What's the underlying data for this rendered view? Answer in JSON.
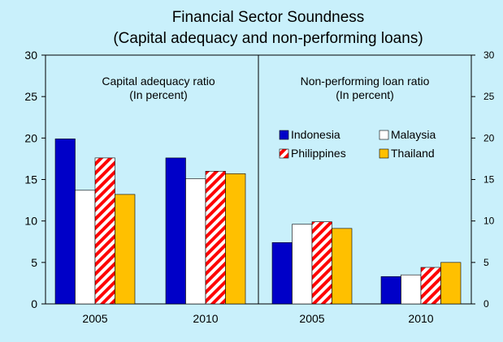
{
  "chart_data": {
    "type": "bar",
    "title": "Financial Sector Soundness",
    "subtitle": "(Capital adequacy and non-performing loans)",
    "ylim": [
      0,
      30
    ],
    "yticks": [
      0,
      5,
      10,
      15,
      20,
      25,
      30
    ],
    "grid": false,
    "legend_position": "inside right panel, upper",
    "panels": [
      {
        "title": "Capital adequacy ratio",
        "subtitle": "(In percent)",
        "categories": [
          "2005",
          "2010"
        ],
        "series": [
          {
            "name": "Indonesia",
            "values": [
              19.9,
              17.6
            ]
          },
          {
            "name": "Malaysia",
            "values": [
              13.7,
              15.1
            ]
          },
          {
            "name": "Philippines",
            "values": [
              17.6,
              16.0
            ]
          },
          {
            "name": "Thailand",
            "values": [
              13.2,
              15.7
            ]
          }
        ]
      },
      {
        "title": "Non-performing loan ratio",
        "subtitle": "(In percent)",
        "categories": [
          "2005",
          "2010"
        ],
        "series": [
          {
            "name": "Indonesia",
            "values": [
              7.4,
              3.3
            ]
          },
          {
            "name": "Malaysia",
            "values": [
              9.6,
              3.5
            ]
          },
          {
            "name": "Philippines",
            "values": [
              9.9,
              4.4
            ]
          },
          {
            "name": "Thailand",
            "values": [
              9.1,
              5.0
            ]
          }
        ]
      }
    ],
    "legend": [
      "Indonesia",
      "Malaysia",
      "Philippines",
      "Thailand"
    ],
    "colors": {
      "Indonesia": "#0000c8",
      "Malaysia": "#ffffff",
      "Philippines": "hatched-red",
      "Thailand": "#ffc000",
      "background": "#c9f0fb",
      "hatch": "#ff0000"
    }
  }
}
